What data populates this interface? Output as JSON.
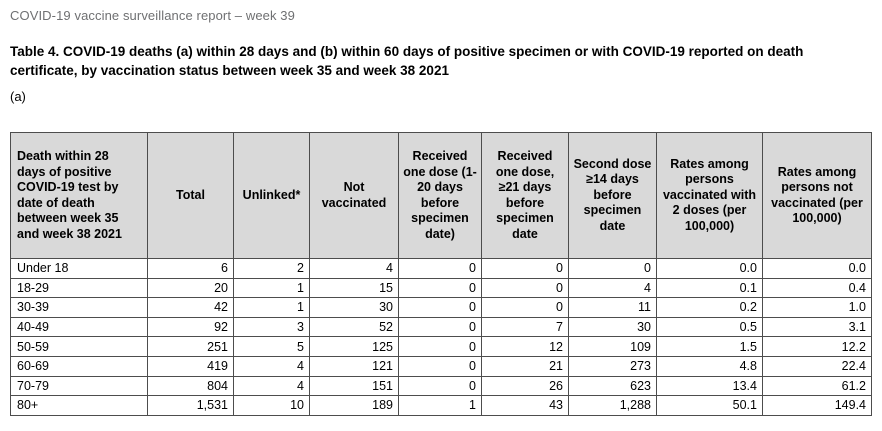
{
  "page": {
    "report_header": "COVID-19 vaccine surveillance report – week 39",
    "table_title": "Table 4. COVID-19 deaths (a) within 28 days and (b) within 60 days of positive specimen or with COVID-19 reported on death certificate, by vaccination status between week 35 and week 38 2021",
    "section_label": "(a)"
  },
  "colors": {
    "header_background": "#d9d9d9",
    "table_border": "#4d4d4d",
    "report_header_text": "#6f7072",
    "body_text": "#000000"
  },
  "table": {
    "columns": [
      "Death within 28 days of positive COVID-19 test by date of death between week 35 and week 38 2021",
      "Total",
      "Unlinked*",
      "Not vaccinated",
      "Received one dose (1-20 days before specimen date)",
      "Received one dose, ≥21 days before specimen date",
      "Second dose ≥14 days before specimen date",
      "Rates among persons vaccinated with 2 doses (per 100,000)",
      "Rates among persons not vaccinated (per 100,000)"
    ],
    "rows": [
      {
        "label": "Under 18",
        "values": [
          "6",
          "2",
          "4",
          "0",
          "0",
          "0",
          "0.0",
          "0.0"
        ]
      },
      {
        "label": "18-29",
        "values": [
          "20",
          "1",
          "15",
          "0",
          "0",
          "4",
          "0.1",
          "0.4"
        ]
      },
      {
        "label": "30-39",
        "values": [
          "42",
          "1",
          "30",
          "0",
          "0",
          "11",
          "0.2",
          "1.0"
        ]
      },
      {
        "label": "40-49",
        "values": [
          "92",
          "3",
          "52",
          "0",
          "7",
          "30",
          "0.5",
          "3.1"
        ]
      },
      {
        "label": "50-59",
        "values": [
          "251",
          "5",
          "125",
          "0",
          "12",
          "109",
          "1.5",
          "12.2"
        ]
      },
      {
        "label": "60-69",
        "values": [
          "419",
          "4",
          "121",
          "0",
          "21",
          "273",
          "4.8",
          "22.4"
        ]
      },
      {
        "label": "70-79",
        "values": [
          "804",
          "4",
          "151",
          "0",
          "26",
          "623",
          "13.4",
          "61.2"
        ]
      },
      {
        "label": "80+",
        "values": [
          "1,531",
          "10",
          "189",
          "1",
          "43",
          "1,288",
          "50.1",
          "149.4"
        ]
      }
    ]
  }
}
